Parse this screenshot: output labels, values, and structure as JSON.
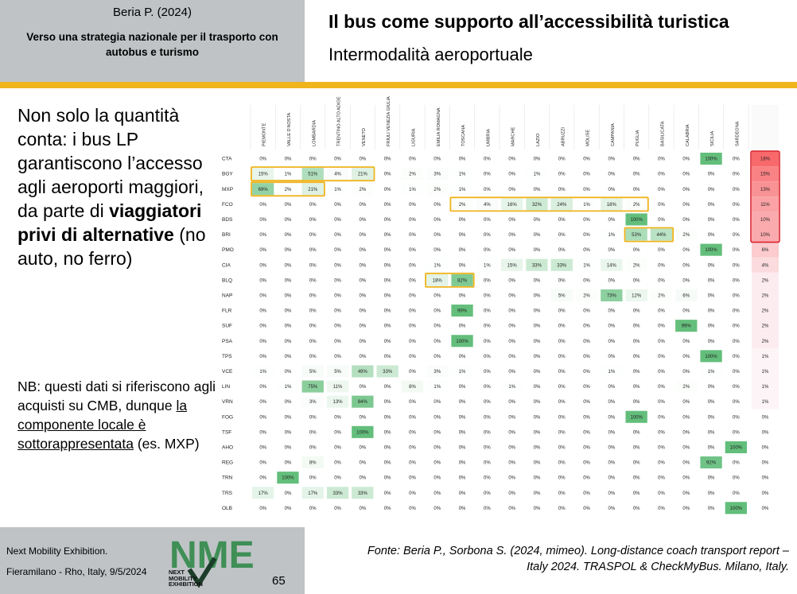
{
  "header": {
    "author": "Beria P. (2024)",
    "subtitle": "Verso una strategia nazionale per il trasporto con autobus e turismo",
    "title": "Il bus come supporto all’accessibilità turistica",
    "title2": "Intermodalità aeroportuale"
  },
  "main": {
    "line1": "Non solo la quantità conta: i bus LP garantiscono l’accesso agli aeroporti maggiori, da parte di",
    "bold": "viaggiatori privi di alternative",
    "line2": "(no auto, no ferro)"
  },
  "nb": {
    "text1": "NB: questi dati si riferiscono agli acquisti su CMB, dunque",
    "underlined": "la componente locale è sottorappresentata",
    "text2": "(es. MXP)"
  },
  "footer": {
    "exhibition": "Next Mobility Exhibition.",
    "location": "Fieramilano - Rho, Italy, 9/5/2024",
    "page": "65",
    "logo_text": "NME",
    "logo_tag1": "NEXT",
    "logo_tag2": "MOBILITY",
    "logo_tag3": "EXHIBITION",
    "source": "Fonte: Beria P., Sorbona S. (2024, mimeo). Long-distance coach transport report – Italy 2024. TRASPOL & CheckMyBus. Milano, Italy."
  },
  "colors": {
    "accent_yellow": "#f0b41c",
    "header_grey": "#bfc3c6",
    "green_high": "#63be7b",
    "red_high": "#f8696b",
    "logo_green": "#3f8f56"
  },
  "chart_data": {
    "type": "heatmap",
    "title": "",
    "columns": [
      "PIEMONTE",
      "VALLE D'AOSTA",
      "LOMBARDIA",
      "TRENTINO ALTO ADIGE",
      "VENETO",
      "FRIULI VENEZIA GIULIA",
      "LIGURIA",
      "EMILIA ROMAGNA",
      "TOSCANA",
      "UMBRIA",
      "MARCHE",
      "LAZIO",
      "ABRUZZI",
      "MOLISE",
      "CAMPANIA",
      "PUGLIA",
      "BASILICATA",
      "CALABRIA",
      "SICILIA",
      "SARDEGNA"
    ],
    "rows": [
      {
        "airport": "CTA",
        "values": [
          0,
          0,
          0,
          0,
          0,
          0,
          0,
          0,
          0,
          0,
          0,
          0,
          0,
          0,
          0,
          0,
          0,
          0,
          100,
          0
        ],
        "share": 18
      },
      {
        "airport": "BGY",
        "values": [
          15,
          1,
          51,
          4,
          21,
          0,
          2,
          3,
          1,
          0,
          0,
          1,
          0,
          0,
          0,
          0,
          0,
          0,
          0,
          0
        ],
        "share": 15
      },
      {
        "airport": "MXP",
        "values": [
          69,
          2,
          21,
          1,
          2,
          0,
          1,
          2,
          1,
          0,
          0,
          0,
          0,
          0,
          0,
          0,
          0,
          0,
          0,
          0
        ],
        "share": 13
      },
      {
        "airport": "FCO",
        "values": [
          0,
          0,
          0,
          0,
          0,
          0,
          0,
          0,
          2,
          4,
          16,
          32,
          24,
          1,
          18,
          2,
          0,
          0,
          0,
          0
        ],
        "share": 11
      },
      {
        "airport": "BDS",
        "values": [
          0,
          0,
          0,
          0,
          0,
          0,
          0,
          0,
          0,
          0,
          0,
          0,
          0,
          0,
          0,
          100,
          0,
          0,
          0,
          0
        ],
        "share": 10
      },
      {
        "airport": "BRI",
        "values": [
          0,
          0,
          0,
          0,
          0,
          0,
          0,
          0,
          0,
          0,
          0,
          0,
          0,
          0,
          1,
          53,
          44,
          2,
          0,
          0
        ],
        "share": 10
      },
      {
        "airport": "PMO",
        "values": [
          0,
          0,
          0,
          0,
          0,
          0,
          0,
          0,
          0,
          0,
          0,
          0,
          0,
          0,
          0,
          0,
          0,
          0,
          100,
          0
        ],
        "share": 6
      },
      {
        "airport": "CIA",
        "values": [
          0,
          0,
          0,
          0,
          0,
          0,
          0,
          1,
          0,
          1,
          15,
          33,
          33,
          1,
          14,
          2,
          0,
          0,
          0,
          0
        ],
        "share": 4
      },
      {
        "airport": "BLQ",
        "values": [
          0,
          0,
          0,
          0,
          0,
          0,
          0,
          18,
          82,
          0,
          0,
          0,
          0,
          0,
          0,
          0,
          0,
          0,
          0,
          0
        ],
        "share": 2
      },
      {
        "airport": "NAP",
        "values": [
          0,
          0,
          0,
          0,
          0,
          0,
          0,
          0,
          0,
          0,
          0,
          0,
          5,
          2,
          73,
          12,
          2,
          6,
          0,
          0
        ],
        "share": 2
      },
      {
        "airport": "FLR",
        "values": [
          0,
          0,
          0,
          0,
          0,
          0,
          0,
          0,
          99,
          0,
          0,
          0,
          0,
          0,
          0,
          0,
          0,
          0,
          0,
          0
        ],
        "share": 2
      },
      {
        "airport": "SUF",
        "values": [
          0,
          0,
          0,
          0,
          0,
          0,
          0,
          0,
          0,
          0,
          0,
          0,
          0,
          0,
          0,
          0,
          0,
          99,
          0,
          0
        ],
        "share": 2
      },
      {
        "airport": "PSA",
        "values": [
          0,
          0,
          0,
          0,
          0,
          0,
          0,
          0,
          100,
          0,
          0,
          0,
          0,
          0,
          0,
          0,
          0,
          0,
          0,
          0
        ],
        "share": 2
      },
      {
        "airport": "TPS",
        "values": [
          0,
          0,
          0,
          0,
          0,
          0,
          0,
          0,
          0,
          0,
          0,
          0,
          0,
          0,
          0,
          0,
          0,
          0,
          100,
          0
        ],
        "share": 1
      },
      {
        "airport": "VCE",
        "values": [
          1,
          0,
          5,
          5,
          49,
          33,
          0,
          3,
          1,
          0,
          0,
          0,
          0,
          0,
          1,
          0,
          0,
          0,
          1,
          0
        ],
        "share": 1
      },
      {
        "airport": "LIN",
        "values": [
          0,
          1,
          75,
          11,
          0,
          0,
          8,
          1,
          0,
          0,
          1,
          0,
          0,
          0,
          0,
          0,
          0,
          2,
          0,
          0
        ],
        "share": 1
      },
      {
        "airport": "VRN",
        "values": [
          0,
          0,
          3,
          13,
          84,
          0,
          0,
          0,
          0,
          0,
          0,
          0,
          0,
          0,
          0,
          0,
          0,
          0,
          0,
          0
        ],
        "share": 1
      },
      {
        "airport": "FOG",
        "values": [
          0,
          0,
          0,
          0,
          0,
          0,
          0,
          0,
          0,
          0,
          0,
          0,
          0,
          0,
          0,
          100,
          0,
          0,
          0,
          0
        ],
        "share": 0
      },
      {
        "airport": "TSF",
        "values": [
          0,
          0,
          0,
          0,
          100,
          0,
          0,
          0,
          0,
          0,
          0,
          0,
          0,
          0,
          0,
          0,
          0,
          0,
          0,
          0
        ],
        "share": 0
      },
      {
        "airport": "AHO",
        "values": [
          0,
          0,
          0,
          0,
          0,
          0,
          0,
          0,
          0,
          0,
          0,
          0,
          0,
          0,
          0,
          0,
          0,
          0,
          0,
          100
        ],
        "share": 0
      },
      {
        "airport": "REG",
        "values": [
          0,
          0,
          8,
          0,
          0,
          0,
          0,
          0,
          0,
          0,
          0,
          0,
          0,
          0,
          0,
          0,
          0,
          0,
          92,
          0
        ],
        "share": 0
      },
      {
        "airport": "TRN",
        "values": [
          0,
          100,
          0,
          0,
          0,
          0,
          0,
          0,
          0,
          0,
          0,
          0,
          0,
          0,
          0,
          0,
          0,
          0,
          0,
          0
        ],
        "share": 0
      },
      {
        "airport": "TRS",
        "values": [
          17,
          0,
          17,
          33,
          33,
          0,
          0,
          0,
          0,
          0,
          0,
          0,
          0,
          0,
          0,
          0,
          0,
          0,
          0,
          0
        ],
        "share": 0
      },
      {
        "airport": "OLB",
        "values": [
          0,
          0,
          0,
          0,
          0,
          0,
          0,
          0,
          0,
          0,
          0,
          0,
          0,
          0,
          0,
          0,
          0,
          0,
          0,
          100
        ],
        "share": 0
      }
    ],
    "highlights": [
      {
        "row": "BGY",
        "from_col": "PIEMONTE",
        "to_col": "VENETO"
      },
      {
        "row": "MXP",
        "from_col": "PIEMONTE",
        "to_col": "LOMBARDIA"
      },
      {
        "row": "FCO",
        "from_col": "TOSCANA",
        "to_col": "PUGLIA"
      },
      {
        "row": "BRI",
        "from_col": "PUGLIA",
        "to_col": "BASILICATA"
      },
      {
        "row": "BLQ",
        "from_col": "EMILIA ROMAGNA",
        "to_col": "TOSCANA"
      }
    ],
    "share_highlight_rows": [
      "CTA",
      "BGY",
      "MXP",
      "FCO",
      "BDS",
      "BRI"
    ],
    "unit": "%"
  }
}
